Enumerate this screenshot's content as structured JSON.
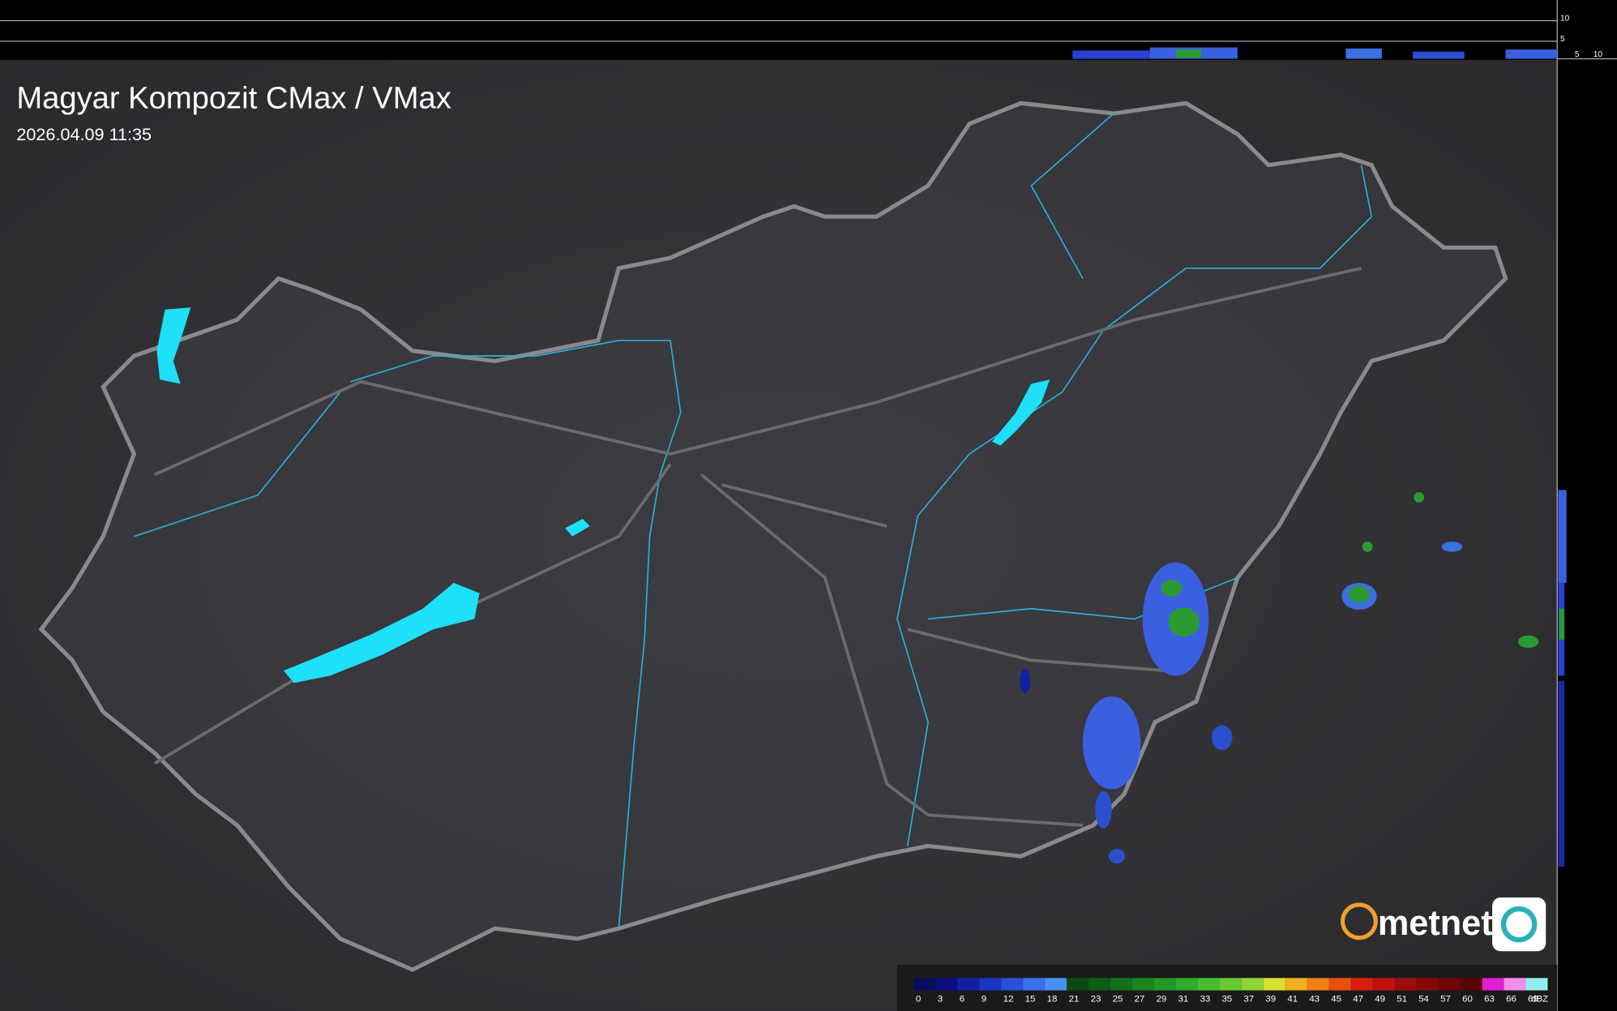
{
  "header": {
    "title": "Magyar Kompozit CMax / VMax",
    "timestamp": "2026.04.09 11:35"
  },
  "top_axis": {
    "labels": [
      "10",
      "5"
    ]
  },
  "right_axis": {
    "labels": [
      "5",
      "10"
    ]
  },
  "logo": {
    "text": "metnet"
  },
  "legend": {
    "unit": "dBZ",
    "items": [
      {
        "label": "0",
        "color": "#0a0a5a"
      },
      {
        "label": "3",
        "color": "#0d0d80"
      },
      {
        "label": "6",
        "color": "#1020a0"
      },
      {
        "label": "9",
        "color": "#1a35c0"
      },
      {
        "label": "12",
        "color": "#2a50d8"
      },
      {
        "label": "15",
        "color": "#3a70e8"
      },
      {
        "label": "18",
        "color": "#4a90f0"
      },
      {
        "label": "21",
        "color": "#0a4a10"
      },
      {
        "label": "23",
        "color": "#0f5c15"
      },
      {
        "label": "25",
        "color": "#14701a"
      },
      {
        "label": "27",
        "color": "#1a8420"
      },
      {
        "label": "29",
        "color": "#229826"
      },
      {
        "label": "31",
        "color": "#30ac2c"
      },
      {
        "label": "33",
        "color": "#48bc30"
      },
      {
        "label": "35",
        "color": "#68c834"
      },
      {
        "label": "37",
        "color": "#90d438"
      },
      {
        "label": "39",
        "color": "#d8e030"
      },
      {
        "label": "41",
        "color": "#f0b020"
      },
      {
        "label": "43",
        "color": "#f08018"
      },
      {
        "label": "45",
        "color": "#e85010"
      },
      {
        "label": "47",
        "color": "#d82010"
      },
      {
        "label": "49",
        "color": "#c01010"
      },
      {
        "label": "51",
        "color": "#a00c0c"
      },
      {
        "label": "54",
        "color": "#880808"
      },
      {
        "label": "57",
        "color": "#700606"
      },
      {
        "label": "60",
        "color": "#580404"
      },
      {
        "label": "63",
        "color": "#e020d0"
      },
      {
        "label": "66",
        "color": "#f090e8"
      },
      {
        "label": "69",
        "color": "#90f0f0"
      }
    ]
  }
}
